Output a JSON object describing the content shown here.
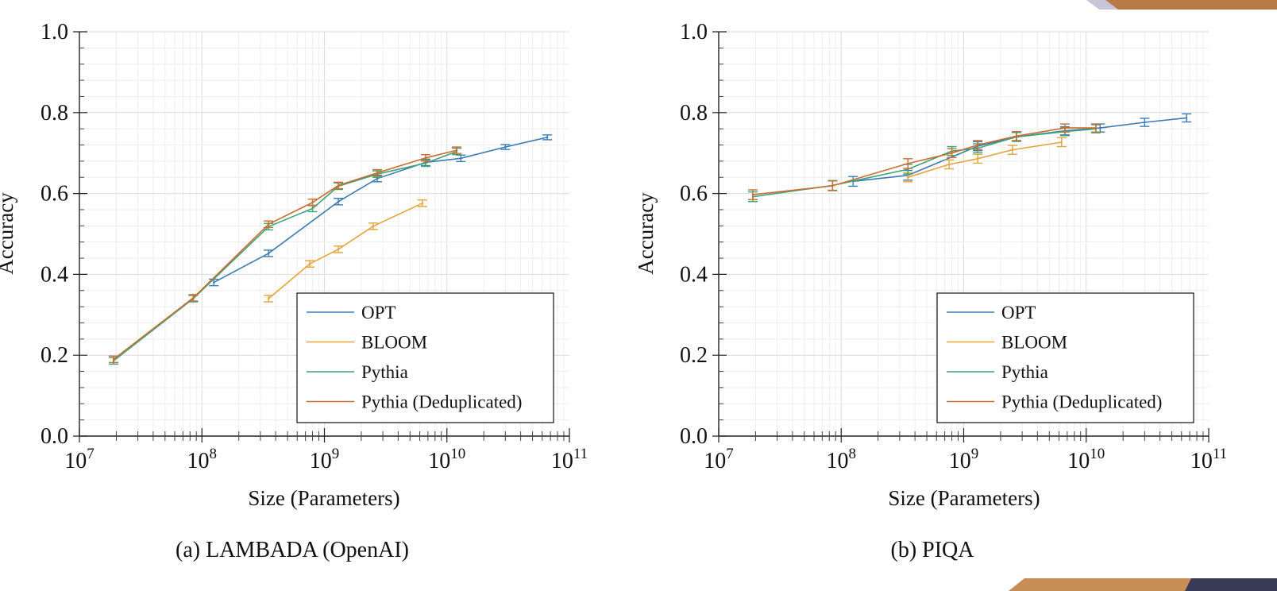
{
  "panels": [
    {
      "caption": "(a) LAMBADA (OpenAI)",
      "chart_data": {
        "type": "line",
        "x_scale": "log",
        "xlim": [
          10000000,
          100000000000
        ],
        "ylim": [
          0,
          1
        ],
        "xlabel": "Size (Parameters)",
        "ylabel": "Accuracy",
        "x_ticks": [
          {
            "value": 10000000,
            "base": "10",
            "exp": "7"
          },
          {
            "value": 100000000,
            "base": "10",
            "exp": "8"
          },
          {
            "value": 1000000000,
            "base": "10",
            "exp": "9"
          },
          {
            "value": 10000000000,
            "base": "10",
            "exp": "10"
          },
          {
            "value": 100000000000,
            "base": "10",
            "exp": "11"
          }
        ],
        "y_ticks": [
          "0.0",
          "0.2",
          "0.4",
          "0.6",
          "0.8",
          "1.0"
        ],
        "y_tick_values": [
          0,
          0.2,
          0.4,
          0.6,
          0.8,
          1.0
        ],
        "grid": true,
        "legend_position": "bottom-right",
        "series": [
          {
            "name": "OPT",
            "color": "#3b7bb5",
            "x": [
              125000000,
              350000000,
              1300000000,
              2700000000,
              6700000000,
              13000000000,
              30000000000,
              66000000000
            ],
            "y": [
              0.38,
              0.452,
              0.58,
              0.637,
              0.677,
              0.687,
              0.715,
              0.739
            ],
            "err": [
              0.008,
              0.008,
              0.008,
              0.008,
              0.008,
              0.008,
              0.006,
              0.006
            ]
          },
          {
            "name": "BLOOM",
            "color": "#e6a33a",
            "x": [
              350000000,
              760000000,
              1300000000,
              2500000000,
              6300000000
            ],
            "y": [
              0.34,
              0.426,
              0.462,
              0.519,
              0.576
            ],
            "err": [
              0.008,
              0.008,
              0.008,
              0.008,
              0.008
            ]
          },
          {
            "name": "Pythia",
            "color": "#3aa57a",
            "x": [
              19000000,
              85000000,
              350000000,
              800000000,
              1300000000,
              2700000000,
              6700000000,
              12000000000
            ],
            "y": [
              0.186,
              0.34,
              0.518,
              0.563,
              0.618,
              0.648,
              0.675,
              0.704
            ],
            "err": [
              0.008,
              0.008,
              0.008,
              0.008,
              0.008,
              0.008,
              0.008,
              0.008
            ]
          },
          {
            "name": "Pythia (Deduplicated)",
            "color": "#cc6c2f",
            "x": [
              19000000,
              85000000,
              350000000,
              800000000,
              1300000000,
              2700000000,
              6700000000,
              12000000000
            ],
            "y": [
              0.19,
              0.342,
              0.524,
              0.578,
              0.62,
              0.651,
              0.688,
              0.707
            ],
            "err": [
              0.008,
              0.008,
              0.008,
              0.008,
              0.008,
              0.008,
              0.008,
              0.008
            ]
          }
        ]
      }
    },
    {
      "caption": "(b) PIQA",
      "chart_data": {
        "type": "line",
        "x_scale": "log",
        "xlim": [
          10000000,
          100000000000
        ],
        "ylim": [
          0,
          1
        ],
        "xlabel": "Size (Parameters)",
        "ylabel": "Accuracy",
        "x_ticks": [
          {
            "value": 10000000,
            "base": "10",
            "exp": "7"
          },
          {
            "value": 100000000,
            "base": "10",
            "exp": "8"
          },
          {
            "value": 1000000000,
            "base": "10",
            "exp": "9"
          },
          {
            "value": 10000000000,
            "base": "10",
            "exp": "10"
          },
          {
            "value": 100000000000,
            "base": "10",
            "exp": "11"
          }
        ],
        "y_ticks": [
          "0.0",
          "0.2",
          "0.4",
          "0.6",
          "0.8",
          "1.0"
        ],
        "y_tick_values": [
          0,
          0.2,
          0.4,
          0.6,
          0.8,
          1.0
        ],
        "grid": true,
        "legend_position": "bottom-right",
        "series": [
          {
            "name": "OPT",
            "color": "#3b7bb5",
            "x": [
              125000000,
              350000000,
              1300000000,
              2700000000,
              6700000000,
              13000000000,
              30000000000,
              66000000000
            ],
            "y": [
              0.63,
              0.645,
              0.717,
              0.74,
              0.755,
              0.762,
              0.776,
              0.787
            ],
            "err": [
              0.012,
              0.012,
              0.011,
              0.011,
              0.01,
              0.01,
              0.01,
              0.01
            ]
          },
          {
            "name": "BLOOM",
            "color": "#e6a33a",
            "x": [
              350000000,
              760000000,
              1300000000,
              2500000000,
              6300000000
            ],
            "y": [
              0.64,
              0.672,
              0.686,
              0.708,
              0.727
            ],
            "err": [
              0.011,
              0.011,
              0.011,
              0.011,
              0.011
            ]
          },
          {
            "name": "Pythia",
            "color": "#3aa57a",
            "x": [
              19000000,
              85000000,
              350000000,
              800000000,
              1300000000,
              2700000000,
              6700000000,
              12000000000
            ],
            "y": [
              0.592,
              0.62,
              0.66,
              0.705,
              0.712,
              0.74,
              0.753,
              0.76
            ],
            "err": [
              0.012,
              0.012,
              0.012,
              0.011,
              0.011,
              0.011,
              0.01,
              0.01
            ]
          },
          {
            "name": "Pythia (Deduplicated)",
            "color": "#cc6c2f",
            "x": [
              19000000,
              85000000,
              350000000,
              800000000,
              1300000000,
              2700000000,
              6700000000,
              12000000000
            ],
            "y": [
              0.597,
              0.619,
              0.674,
              0.7,
              0.72,
              0.742,
              0.762,
              0.762
            ],
            "err": [
              0.012,
              0.012,
              0.012,
              0.011,
              0.011,
              0.011,
              0.01,
              0.01
            ]
          }
        ]
      }
    }
  ]
}
